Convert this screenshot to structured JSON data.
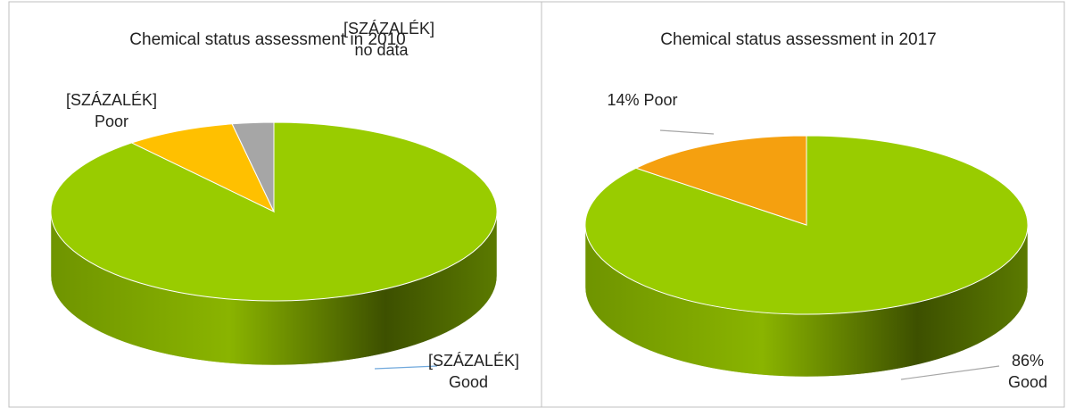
{
  "chart_data": [
    {
      "type": "pie",
      "title": "Chemical status assessment in 2010",
      "categories": [
        "Good",
        "Poor",
        "no data"
      ],
      "values": [
        89,
        8,
        3
      ],
      "value_labels": [
        "[SZÁZALÉK]",
        "[SZÁZALÉK]",
        "[SZÁZALÉK]"
      ],
      "colors": [
        "#99cc00",
        "#ffc000",
        "#a6a6a6"
      ]
    },
    {
      "type": "pie",
      "title": "Chemical status assessment in 2017",
      "categories": [
        "Good",
        "Poor"
      ],
      "values": [
        86,
        14
      ],
      "value_labels": [
        "86%",
        "14%"
      ],
      "colors": [
        "#99cc00",
        "#f5a00f"
      ]
    }
  ]
}
